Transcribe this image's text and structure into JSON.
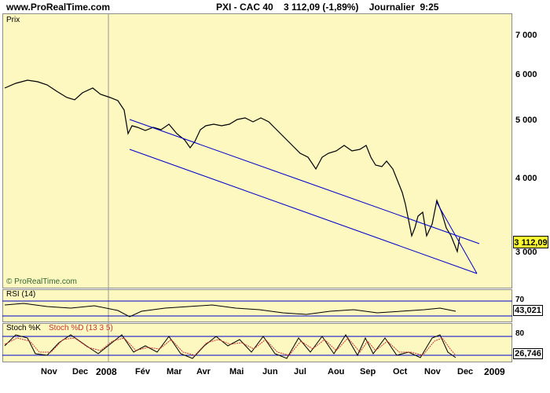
{
  "header": {
    "site": "www.ProRealTime.com",
    "title": "PXI - CAC 40    3 112,09 (-1,89%)    Journalier  9:25"
  },
  "price_panel": {
    "label": "Prix",
    "watermark": "© ProRealTime.com",
    "y_ticks": [
      "7 000",
      "6 000",
      "5 000",
      "4 000",
      "3 000"
    ],
    "last_price": "3 112,09"
  },
  "rsi_panel": {
    "label": "RSI (14)",
    "y_ticks": [
      "70"
    ],
    "value": "43,021"
  },
  "stoch_panel": {
    "label_k": "Stoch %K",
    "label_d": "Stoch %D (13 3 5)",
    "y_ticks": [
      "80"
    ],
    "value": "26,746"
  },
  "x_axis": [
    "Nov",
    "Dec",
    "2008",
    "Fév",
    "Mar",
    "Avr",
    "Mai",
    "Jun",
    "Jul",
    "Aou",
    "Sep",
    "Oct",
    "Nov",
    "Dec",
    "2009"
  ],
  "chart_data": {
    "type": "line",
    "title": "PXI - CAC 40",
    "x": [
      "Nov",
      "Dec",
      "2008",
      "Fév",
      "Mar",
      "Avr",
      "Mai",
      "Jun",
      "Jul",
      "Aou",
      "Sep",
      "Oct",
      "Nov",
      "Dec"
    ],
    "series": [
      {
        "name": "Prix",
        "values": [
          5800,
          5650,
          5500,
          4850,
          4700,
          4950,
          5000,
          4800,
          4400,
          4400,
          4300,
          3600,
          3300,
          3112
        ]
      }
    ],
    "ylim": [
      2800,
      7200
    ],
    "log_scale": true,
    "colors": {
      "background": "#fcf8c0",
      "trend_lines": "#0000cc",
      "price": "#000000",
      "stoch_d": "#cc3333"
    }
  }
}
